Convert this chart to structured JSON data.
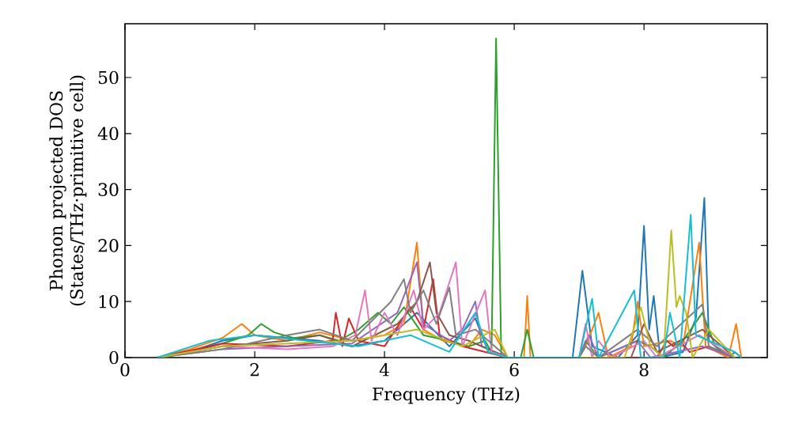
{
  "chart_data": {
    "type": "line",
    "xlabel": "Frequency (THz)",
    "ylabel": "Phonon projected DOS (States/THz·primitive cell)",
    "xlim": [
      0,
      9.9
    ],
    "ylim": [
      0,
      59.6
    ],
    "xticks": [
      0,
      2,
      4,
      6,
      8
    ],
    "yticks": [
      0,
      10,
      20,
      30,
      40,
      50
    ],
    "grid": false,
    "series": [
      {
        "color": "#1f77b4",
        "x": [
          0.5,
          1.0,
          1.5,
          2.0,
          2.5,
          3.0,
          3.5,
          4.0,
          4.5,
          5.0,
          5.4,
          5.6,
          5.9,
          6.9,
          7.05,
          7.2,
          7.6,
          7.9,
          8.0,
          8.08,
          8.15,
          8.25,
          8.6,
          8.8,
          8.93,
          9.0,
          9.3,
          9.4,
          9.5
        ],
        "values": [
          0,
          1,
          3,
          4,
          3.5,
          3,
          2,
          3,
          8,
          2,
          7,
          1,
          0,
          0,
          15.5,
          2,
          0,
          4,
          23.5,
          5,
          11,
          0,
          1,
          7,
          28.5,
          3,
          0,
          1,
          0
        ]
      },
      {
        "color": "#ff7f0e",
        "x": [
          0.5,
          1.0,
          1.5,
          1.8,
          2.0,
          2.5,
          3.0,
          3.5,
          4.0,
          4.3,
          4.5,
          4.6,
          4.9,
          5.3,
          5.5,
          5.7,
          5.9,
          6.15,
          6.2,
          6.25,
          7.0,
          7.1,
          7.3,
          7.45,
          7.8,
          7.9,
          8.0,
          8.4,
          8.6,
          8.85,
          8.95,
          9.3,
          9.42,
          9.5
        ],
        "values": [
          0,
          1.5,
          3.5,
          6,
          4,
          3,
          4.5,
          3,
          4,
          6,
          20.5,
          5,
          3,
          2,
          5,
          4,
          0,
          0,
          11,
          0,
          0,
          2,
          8,
          0,
          2,
          10,
          2,
          3,
          2,
          20.5,
          2,
          0,
          6,
          0
        ]
      },
      {
        "color": "#2ca02c",
        "x": [
          0.5,
          1.0,
          1.5,
          1.9,
          2.1,
          2.3,
          2.6,
          3.0,
          3.3,
          3.6,
          3.9,
          4.1,
          4.3,
          4.6,
          5.0,
          5.3,
          5.55,
          5.65,
          5.72,
          5.8,
          6.1,
          6.2,
          6.3,
          7.0,
          7.1,
          7.3,
          7.9,
          8.1,
          8.3,
          8.6,
          8.9,
          9.1,
          9.4
        ],
        "values": [
          0,
          1,
          2.5,
          4,
          6,
          4.5,
          3.5,
          4,
          3,
          5,
          8,
          6,
          9,
          4,
          3,
          2,
          3,
          1,
          57,
          0,
          0,
          5,
          0,
          0,
          3,
          0,
          3,
          2,
          0,
          3,
          8,
          2,
          0
        ]
      },
      {
        "color": "#d62728",
        "x": [
          0.5,
          1.5,
          2.5,
          3.2,
          3.25,
          3.35,
          3.45,
          3.6,
          4.0,
          4.4,
          4.6,
          4.75,
          4.85,
          5.2,
          5.9,
          8.2,
          8.35,
          8.45,
          8.55,
          8.7,
          9.0,
          9.4
        ],
        "values": [
          0,
          2.5,
          2,
          3,
          8,
          2,
          7,
          3,
          2,
          9,
          5,
          14,
          4,
          2,
          0,
          0,
          3,
          2,
          3,
          1,
          2,
          0
        ]
      },
      {
        "color": "#9467bd",
        "x": [
          0.5,
          1.5,
          2.5,
          3.5,
          4.2,
          4.5,
          4.6,
          5.0,
          5.2,
          5.4,
          5.5,
          5.9,
          7.0,
          7.15,
          7.3,
          7.9,
          8.1,
          8.9,
          9.4
        ],
        "values": [
          0,
          1.5,
          2,
          2.5,
          8,
          17,
          6,
          3,
          5,
          10,
          2,
          0,
          0,
          4,
          0,
          3,
          0,
          2,
          0
        ]
      },
      {
        "color": "#8c564b",
        "x": [
          0.5,
          1.5,
          2.5,
          3.0,
          3.5,
          4.2,
          4.5,
          4.7,
          4.8,
          5.0,
          5.3,
          5.9,
          7.8,
          8.0,
          8.2,
          8.9,
          9.4
        ],
        "values": [
          0,
          2,
          3,
          4,
          2,
          6,
          10,
          17,
          8,
          4,
          3,
          0,
          0,
          6,
          1,
          5,
          0
        ]
      },
      {
        "color": "#e377c2",
        "x": [
          0.5,
          1.5,
          2.5,
          3.2,
          3.55,
          3.7,
          3.8,
          4.0,
          4.2,
          4.45,
          4.6,
          4.85,
          5.1,
          5.2,
          5.55,
          5.65,
          5.9,
          7.0,
          7.1,
          7.2,
          7.3,
          7.5,
          8.0,
          8.2,
          8.85,
          9.4
        ],
        "values": [
          0,
          2,
          1.5,
          2,
          4,
          12,
          3,
          8,
          4,
          12,
          5,
          8,
          17,
          2,
          12,
          1,
          0,
          0,
          6,
          0,
          3,
          0,
          3,
          0,
          4,
          0
        ]
      },
      {
        "color": "#7f7f7f",
        "x": [
          0.5,
          1.5,
          2.5,
          3.0,
          3.5,
          4.1,
          4.3,
          4.4,
          4.6,
          4.8,
          5.0,
          5.1,
          5.4,
          5.9,
          7.0,
          7.1,
          7.3,
          7.9,
          8.2,
          8.9,
          9.0,
          9.4
        ],
        "values": [
          0,
          1.5,
          4,
          5,
          3,
          10,
          14,
          8,
          12,
          6,
          12.5,
          4,
          5,
          0,
          0,
          2,
          0,
          5,
          2,
          9.5,
          2,
          0
        ]
      },
      {
        "color": "#bcbd22",
        "x": [
          0.5,
          1.5,
          2.5,
          3.5,
          4.5,
          5.2,
          5.7,
          5.9,
          7.7,
          7.95,
          8.1,
          8.3,
          8.42,
          8.5,
          8.55,
          8.65,
          8.75,
          9.0,
          9.4
        ],
        "values": [
          0,
          2,
          2.5,
          3,
          5,
          2,
          5,
          0,
          0,
          9,
          2,
          0,
          22.7,
          9,
          11,
          8,
          0,
          5,
          0
        ]
      },
      {
        "color": "#17becf",
        "x": [
          0.5,
          1.3,
          2.0,
          2.8,
          3.6,
          4.4,
          5.0,
          5.4,
          5.6,
          5.9,
          7.0,
          7.2,
          7.3,
          7.85,
          7.95,
          8.3,
          8.4,
          8.55,
          8.72,
          8.8,
          9.0,
          9.4,
          9.5
        ],
        "values": [
          0,
          3,
          4,
          3,
          2,
          4,
          1,
          8,
          1,
          0,
          0,
          10.5,
          0,
          12,
          0,
          0,
          8,
          0,
          25.5,
          4,
          3,
          1,
          0
        ]
      }
    ]
  }
}
